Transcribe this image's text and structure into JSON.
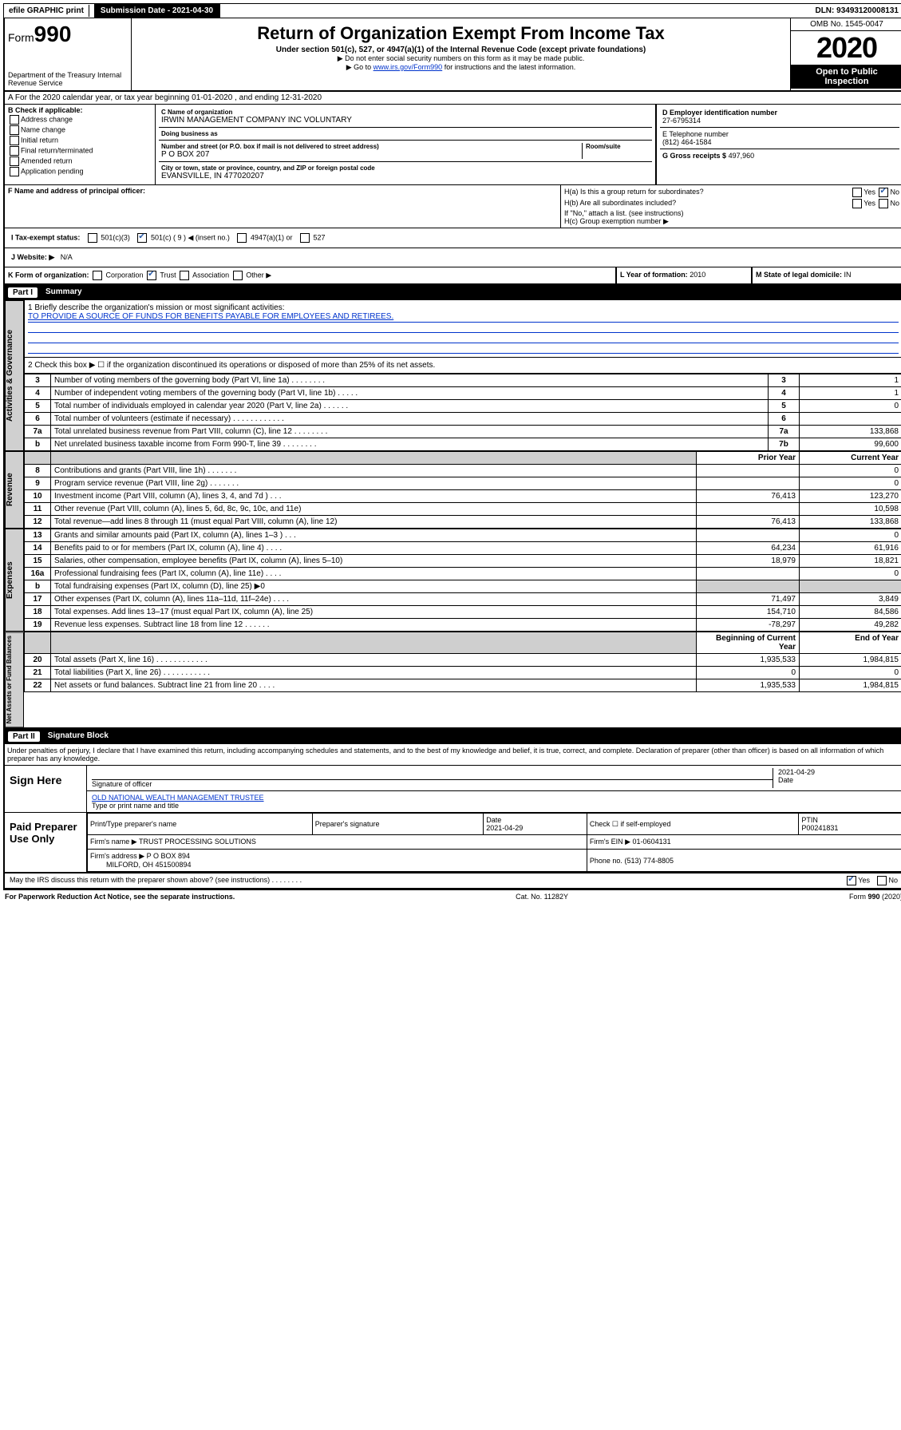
{
  "topbar": {
    "efile": "efile GRAPHIC print",
    "sub_label": "Submission Date - 2021-04-30",
    "dln": "DLN: 93493120008131"
  },
  "header": {
    "form_prefix": "Form",
    "form_num": "990",
    "dept": "Department of the Treasury\nInternal Revenue Service",
    "title": "Return of Organization Exempt From Income Tax",
    "subtitle": "Under section 501(c), 527, or 4947(a)(1) of the Internal Revenue Code (except private foundations)",
    "note1": "▶ Do not enter social security numbers on this form as it may be made public.",
    "note2_pre": "▶ Go to ",
    "note2_link": "www.irs.gov/Form990",
    "note2_post": " for instructions and the latest information.",
    "omb": "OMB No. 1545-0047",
    "year": "2020",
    "open": "Open to Public Inspection"
  },
  "section_a": "A For the 2020 calendar year, or tax year beginning 01-01-2020   , and ending 12-31-2020",
  "checkboxes": {
    "b_label": "B Check if applicable:",
    "items": [
      "Address change",
      "Name change",
      "Initial return",
      "Final return/terminated",
      "Amended return",
      "Application pending"
    ]
  },
  "org": {
    "c_label": "C Name of organization",
    "name": "IRWIN MANAGEMENT COMPANY INC VOLUNTARY",
    "dba_label": "Doing business as",
    "dba": "",
    "addr_label": "Number and street (or P.O. box if mail is not delivered to street address)",
    "addr": "P O BOX 207",
    "room_label": "Room/suite",
    "city_label": "City or town, state or province, country, and ZIP or foreign postal code",
    "city": "EVANSVILLE, IN  477020207"
  },
  "d": {
    "label": "D Employer identification number",
    "val": "27-6795314"
  },
  "e": {
    "label": "E Telephone number",
    "val": "(812) 464-1584"
  },
  "g": {
    "label": "G Gross receipts $",
    "val": "497,960"
  },
  "f": {
    "label": "F Name and address of principal officer:",
    "val": ""
  },
  "h": {
    "a": "H(a)  Is this a group return for subordinates?",
    "b": "H(b)  Are all subordinates included?",
    "b_note": "If \"No,\" attach a list. (see instructions)",
    "c": "H(c)  Group exemption number ▶"
  },
  "i": {
    "label": "I   Tax-exempt status:",
    "opts": [
      "501(c)(3)",
      "501(c) ( 9 ) ◀ (insert no.)",
      "4947(a)(1) or",
      "527"
    ]
  },
  "j": {
    "label": "J   Website: ▶",
    "val": "N/A"
  },
  "k": {
    "label": "K Form of organization:",
    "opts": [
      "Corporation",
      "Trust",
      "Association",
      "Other ▶"
    ]
  },
  "l": {
    "label": "L Year of formation:",
    "val": "2010"
  },
  "m": {
    "label": "M State of legal domicile:",
    "val": "IN"
  },
  "part1": {
    "num": "Part I",
    "title": "Summary"
  },
  "mission": {
    "q": "1  Briefly describe the organization's mission or most significant activities:",
    "text": "TO PROVIDE A SOURCE OF FUNDS FOR BENEFITS PAYABLE FOR EMPLOYEES AND RETIREES."
  },
  "governance": {
    "side": "Activities & Governance",
    "line2": "2   Check this box ▶ ☐  if the organization discontinued its operations or disposed of more than 25% of its net assets.",
    "rows": [
      {
        "n": "3",
        "t": "Number of voting members of the governing body (Part VI, line 1a)   .    .    .    .    .    .    .    .",
        "rn": "3",
        "v": "1"
      },
      {
        "n": "4",
        "t": "Number of independent voting members of the governing body (Part VI, line 1b)  .    .    .    .    .",
        "rn": "4",
        "v": "1"
      },
      {
        "n": "5",
        "t": "Total number of individuals employed in calendar year 2020 (Part V, line 2a)  .    .    .    .    .    .",
        "rn": "5",
        "v": "0"
      },
      {
        "n": "6",
        "t": "Total number of volunteers (estimate if necessary)  .    .    .    .    .    .    .    .    .    .    .    .",
        "rn": "6",
        "v": ""
      },
      {
        "n": "7a",
        "t": "Total unrelated business revenue from Part VIII, column (C), line 12  .    .    .    .    .    .    .    .",
        "rn": "7a",
        "v": "133,868"
      },
      {
        "n": "b",
        "t": "Net unrelated business taxable income from Form 990-T, line 39   .    .    .    .    .    .    .    .",
        "rn": "7b",
        "v": "99,600"
      }
    ]
  },
  "revenue": {
    "side": "Revenue",
    "hdr_prior": "Prior Year",
    "hdr_curr": "Current Year",
    "rows": [
      {
        "n": "8",
        "t": "Contributions and grants (Part VIII, line 1h)   .    .    .    .    .    .    .",
        "p": "",
        "c": "0"
      },
      {
        "n": "9",
        "t": "Program service revenue (Part VIII, line 2g)   .    .    .    .    .    .    .",
        "p": "",
        "c": "0"
      },
      {
        "n": "10",
        "t": "Investment income (Part VIII, column (A), lines 3, 4, and 7d )  .    .    .",
        "p": "76,413",
        "c": "123,270"
      },
      {
        "n": "11",
        "t": "Other revenue (Part VIII, column (A), lines 5, 6d, 8c, 9c, 10c, and 11e)",
        "p": "",
        "c": "10,598"
      },
      {
        "n": "12",
        "t": "Total revenue—add lines 8 through 11 (must equal Part VIII, column (A), line 12)",
        "p": "76,413",
        "c": "133,868"
      }
    ]
  },
  "expenses": {
    "side": "Expenses",
    "rows": [
      {
        "n": "13",
        "t": "Grants and similar amounts paid (Part IX, column (A), lines 1–3 )  .    .    .",
        "p": "",
        "c": "0"
      },
      {
        "n": "14",
        "t": "Benefits paid to or for members (Part IX, column (A), line 4)  .    .    .    .",
        "p": "64,234",
        "c": "61,916"
      },
      {
        "n": "15",
        "t": "Salaries, other compensation, employee benefits (Part IX, column (A), lines 5–10)",
        "p": "18,979",
        "c": "18,821"
      },
      {
        "n": "16a",
        "t": "Professional fundraising fees (Part IX, column (A), line 11e)  .    .    .    .",
        "p": "",
        "c": "0"
      },
      {
        "n": "b",
        "t": "Total fundraising expenses (Part IX, column (D), line 25) ▶0",
        "p": "shade",
        "c": "shade"
      },
      {
        "n": "17",
        "t": "Other expenses (Part IX, column (A), lines 11a–11d, 11f–24e)  .    .    .    .",
        "p": "71,497",
        "c": "3,849"
      },
      {
        "n": "18",
        "t": "Total expenses. Add lines 13–17 (must equal Part IX, column (A), line 25)",
        "p": "154,710",
        "c": "84,586"
      },
      {
        "n": "19",
        "t": "Revenue less expenses. Subtract line 18 from line 12  .    .    .    .    .    .",
        "p": "-78,297",
        "c": "49,282"
      }
    ]
  },
  "netassets": {
    "side": "Net Assets or Fund Balances",
    "hdr_begin": "Beginning of Current Year",
    "hdr_end": "End of Year",
    "rows": [
      {
        "n": "20",
        "t": "Total assets (Part X, line 16)  .    .    .    .    .    .    .    .    .    .    .    .",
        "p": "1,935,533",
        "c": "1,984,815"
      },
      {
        "n": "21",
        "t": "Total liabilities (Part X, line 26)  .    .    .    .    .    .    .    .    .    .    .",
        "p": "0",
        "c": "0"
      },
      {
        "n": "22",
        "t": "Net assets or fund balances. Subtract line 21 from line 20  .    .    .    .",
        "p": "1,935,533",
        "c": "1,984,815"
      }
    ]
  },
  "part2": {
    "num": "Part II",
    "title": "Signature Block"
  },
  "perjury": "Under penalties of perjury, I declare that I have examined this return, including accompanying schedules and statements, and to the best of my knowledge and belief, it is true, correct, and complete. Declaration of preparer (other than officer) is based on all information of which preparer has any knowledge.",
  "sign": {
    "left": "Sign Here",
    "sig_label": "Signature of officer",
    "date": "2021-04-29",
    "date_label": "Date",
    "name": "OLD NATIONAL WEALTH MANAGEMENT TRUSTEE",
    "name_label": "Type or print name and title"
  },
  "paid": {
    "left": "Paid Preparer Use Only",
    "h1": "Print/Type preparer's name",
    "h2": "Preparer's signature",
    "h3_label": "Date",
    "h3": "2021-04-29",
    "h4": "Check ☐ if self-employed",
    "h5_label": "PTIN",
    "h5": "P00241831",
    "firm_label": "Firm's name    ▶",
    "firm": "TRUST PROCESSING SOLUTIONS",
    "ein_label": "Firm's EIN ▶",
    "ein": "01-0604131",
    "addr_label": "Firm's address ▶",
    "addr": "P O BOX 894",
    "addr2": "MILFORD, OH  451500894",
    "phone_label": "Phone no.",
    "phone": "(513) 774-8805"
  },
  "discuss": "May the IRS discuss this return with the preparer shown above? (see instructions)   .    .    .    .    .    .    .    .",
  "footer": {
    "left": "For Paperwork Reduction Act Notice, see the separate instructions.",
    "mid": "Cat. No. 11282Y",
    "right": "Form 990 (2020)"
  }
}
